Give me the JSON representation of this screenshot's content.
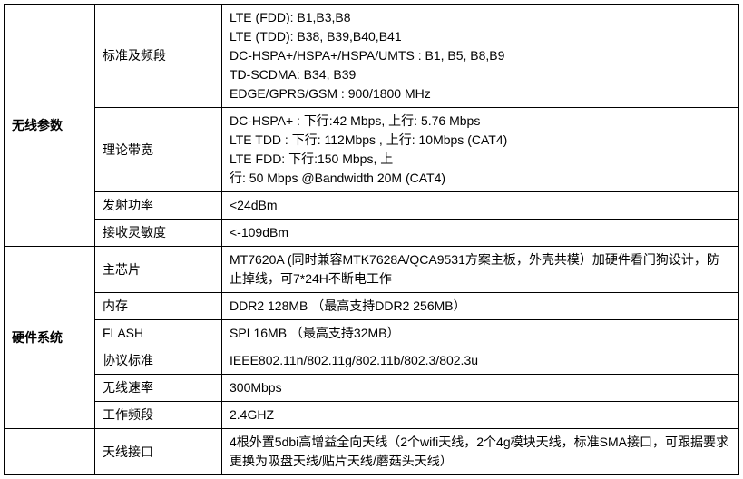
{
  "sections": {
    "wireless": {
      "title": "无线参数",
      "rows": {
        "band": {
          "label": "标准及频段",
          "value": "LTE (FDD): B1,B3,B8\nLTE (TDD): B38, B39,B40,B41\nDC-HSPA+/HSPA+/HSPA/UMTS : B1, B5, B8,B9\nTD-SCDMA: B34, B39\nEDGE/GPRS/GSM : 900/1800 MHz"
        },
        "bandwidth": {
          "label": "理论带宽",
          "value": "DC-HSPA+ : 下行:42 Mbps, 上行: 5.76 Mbps\nLTE TDD : 下行: 112Mbps , 上行: 10Mbps (CAT4)\nLTE FDD: 下行:150 Mbps, 上\n行: 50 Mbps @Bandwidth 20M (CAT4)"
        },
        "tx_power": {
          "label": "发射功率",
          "value": "<24dBm"
        },
        "rx_sens": {
          "label": "接收灵敏度",
          "value": "<-109dBm"
        }
      }
    },
    "hardware": {
      "title": "硬件系统",
      "rows": {
        "chip": {
          "label": "主芯片",
          "value": "MT7620A (同时兼容MTK7628A/QCA9531方案主板，外壳共模）加硬件看门狗设计，防止掉线，可7*24H不断电工作"
        },
        "memory": {
          "label": "内存",
          "value": "DDR2 128MB （最高支持DDR2 256MB）"
        },
        "flash": {
          "label": "FLASH",
          "value": "SPI 16MB （最高支持32MB）"
        },
        "protocol": {
          "label": "协议标准",
          "value": "IEEE802.11n/802.11g/802.11b/802.3/802.3u"
        },
        "speed": {
          "label": "无线速率",
          "value": "300Mbps"
        },
        "freq": {
          "label": "工作频段",
          "value": "2.4GHZ"
        }
      }
    },
    "antenna": {
      "title": "",
      "rows": {
        "interface": {
          "label": "天线接口",
          "value": "4根外置5dbi高增益全向天线（2个wifi天线，2个4g模块天线，标准SMA接口，可跟据要求更换为吸盘天线/贴片天线/蘑菇头天线）"
        }
      }
    }
  }
}
